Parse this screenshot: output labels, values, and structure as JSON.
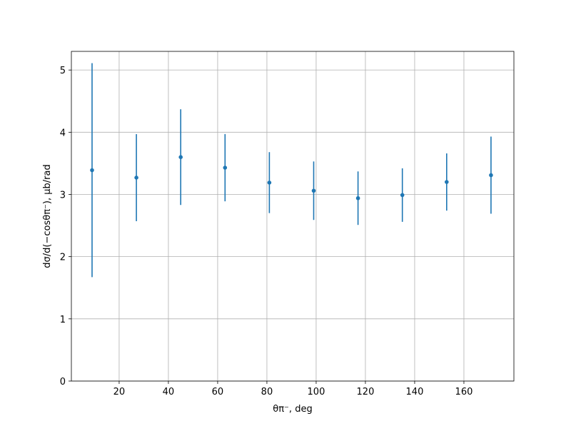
{
  "chart_data": {
    "type": "errorbar",
    "x_label": "θπ⁻, deg",
    "y_label": "dσ/d(−cosθπ⁻), μb/rad",
    "x": [
      9,
      27,
      45,
      63,
      81,
      99,
      117,
      135,
      153,
      171
    ],
    "values": [
      3.39,
      3.27,
      3.6,
      3.43,
      3.19,
      3.06,
      2.94,
      2.99,
      3.2,
      3.31
    ],
    "errors": [
      1.72,
      0.7,
      0.77,
      0.54,
      0.49,
      0.47,
      0.43,
      0.43,
      0.46,
      0.62
    ],
    "color": "#1f77b4",
    "xlim": [
      0.6,
      180.3
    ],
    "ylim": [
      0,
      5.3
    ],
    "xticks": [
      20,
      40,
      60,
      80,
      100,
      120,
      140,
      160
    ],
    "yticks": [
      0,
      1,
      2,
      3,
      4,
      5
    ],
    "grid": true
  }
}
